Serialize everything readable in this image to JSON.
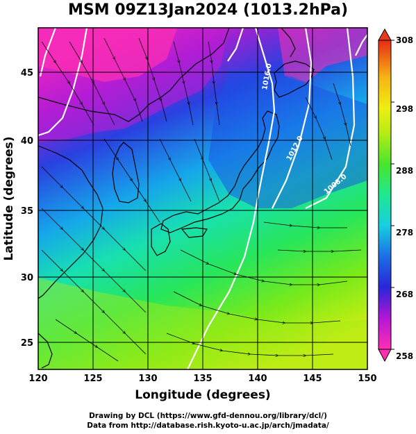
{
  "title": "MSM 09Z13Jan2024 (1013.2hPa)",
  "x_axis": {
    "label": "Longitude (degrees)",
    "ticks": [
      "120",
      "125",
      "130",
      "135",
      "140",
      "145",
      "150"
    ],
    "range": [
      120,
      150
    ]
  },
  "y_axis": {
    "label": "Latitude (degrees)",
    "ticks": [
      "25",
      "30",
      "35",
      "40",
      "45"
    ],
    "range": [
      22.5,
      48
    ]
  },
  "colorbar": {
    "ticks": [
      "258",
      "268",
      "278",
      "288",
      "298",
      "308"
    ],
    "range": [
      258,
      308
    ],
    "colors": [
      "#ff2fb3",
      "#c012d8",
      "#5a1ad0",
      "#1a36e6",
      "#1c6ee6",
      "#16b3ea",
      "#17e0c8",
      "#1fe88a",
      "#27e63a",
      "#6ee61a",
      "#b6ec16",
      "#e6ee12",
      "#f7d214",
      "#f79a16",
      "#ef5a16",
      "#e82a14"
    ]
  },
  "contour_labels": [
    "1016.0",
    "1012.0",
    "1008.0"
  ],
  "footer": {
    "line1": "Drawing by DCL (https://www.gfd-dennou.org/library/dcl/)",
    "line2": "Data from http://database.rish.kyoto-u.ac.jp/arch/jmadata/"
  },
  "colors": {
    "land_outline": "#000000",
    "isobar": "#ffffff",
    "grid": "#000000"
  }
}
